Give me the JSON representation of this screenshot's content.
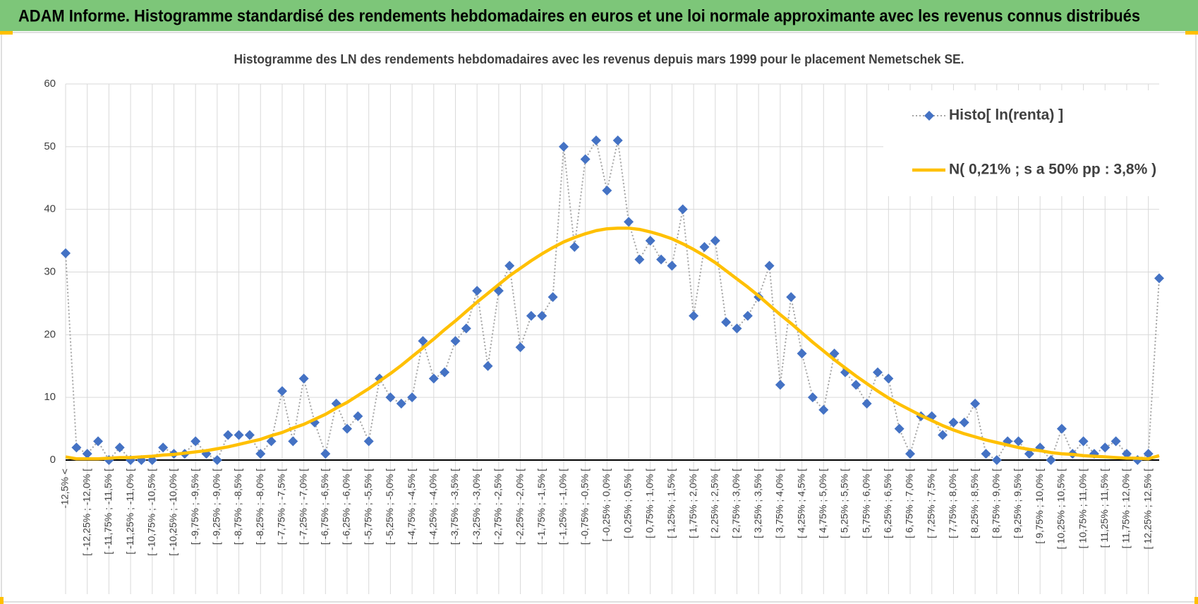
{
  "header": {
    "title": "ADAM Informe. Histogramme standardisé des rendements hebdomadaires en euros et une loi normale approximante avec les revenus connus distribués"
  },
  "chart_data": {
    "type": "line",
    "title": "Histogramme des LN des rendements hebdomadaires avec les revenus depuis mars 1999 pour le placement Nemetschek SE.",
    "categories": [
      "-12,5% <",
      null,
      "[ -12,25% ; -12,0% [",
      null,
      "[ -11,75% ; -11,5% [",
      null,
      "[ -11,25% ; -11,0% [",
      null,
      "[ -10,75% ; -10,5% [",
      null,
      "[ -10,25% ; -10,0% [",
      null,
      "[ -9,75% ; -9,5% [",
      null,
      "[ -9,25% ; -9,0% [",
      null,
      "[ -8,75% ; -8,5% [",
      null,
      "[ -8,25% ; -8,0% [",
      null,
      "[ -7,75% ; -7,5% [",
      null,
      "[ -7,25% ; -7,0% [",
      null,
      "[ -6,75% ; -6,5% [",
      null,
      "[ -6,25% ; -6,0% [",
      null,
      "[ -5,75% ; -5,5% [",
      null,
      "[ -5,25% ; -5,0% [",
      null,
      "[ -4,75% ; -4,5% [",
      null,
      "[ -4,25% ; -4,0% [",
      null,
      "[ -3,75% ; -3,5% [",
      null,
      "[ -3,25% ; -3,0% [",
      null,
      "[ -2,75% ; -2,5% [",
      null,
      "[ -2,25% ; -2,0% [",
      null,
      "[ -1,75% ; -1,5% [",
      null,
      "[ -1,25% ; -1,0% [",
      null,
      "[ -0,75% ; -0,5% [",
      null,
      "[ -0,25% ; 0,0% [",
      null,
      "[ 0,25% ; 0,5% [",
      null,
      "[ 0,75% ; 1,0% [",
      null,
      "[ 1,25% ; 1,5% [",
      null,
      "[ 1,75% ; 2,0% [",
      null,
      "[ 2,25% ; 2,5% [",
      null,
      "[ 2,75% ; 3,0% [",
      null,
      "[ 3,25% ; 3,5% [",
      null,
      "[ 3,75% ; 4,0% [",
      null,
      "[ 4,25% ; 4,5% [",
      null,
      "[ 4,75% ; 5,0% [",
      null,
      "[ 5,25% ; 5,5% [",
      null,
      "[ 5,75% ; 6,0% [",
      null,
      "[ 6,25% ; 6,5% [",
      null,
      "[ 6,75% ; 7,0% [",
      null,
      "[ 7,25% ; 7,5% [",
      null,
      "[ 7,75% ; 8,0% [",
      null,
      "[ 8,25% ; 8,5% [",
      null,
      "[ 8,75% ; 9,0% [",
      null,
      "[ 9,25% ; 9,5% [",
      null,
      "[ 9,75% ; 10,0% [",
      null,
      "[ 10,25% ; 10,5% [",
      null,
      "[ 10,75% ; 11,0% [",
      null,
      "[ 11,25% ; 11,5% [",
      null,
      "[ 11,75% ; 12,0% [",
      null,
      "[ 12,25% ; 12,5% [",
      null
    ],
    "series": [
      {
        "name": "Histo[ ln(renta) ]",
        "color": "#4472c4",
        "line_color": "#a5a5a5",
        "marker": "diamond",
        "dashed": true,
        "values": [
          33,
          2,
          1,
          3,
          0,
          2,
          0,
          0,
          0,
          2,
          1,
          1,
          3,
          1,
          0,
          4,
          4,
          4,
          1,
          3,
          11,
          3,
          13,
          6,
          1,
          9,
          5,
          7,
          3,
          13,
          10,
          9,
          10,
          19,
          13,
          14,
          19,
          21,
          27,
          15,
          27,
          31,
          18,
          23,
          23,
          26,
          50,
          34,
          48,
          51,
          43,
          51,
          38,
          32,
          35,
          32,
          31,
          40,
          23,
          34,
          35,
          22,
          21,
          23,
          26,
          31,
          12,
          26,
          17,
          10,
          8,
          17,
          14,
          12,
          9,
          14,
          13,
          5,
          1,
          7,
          7,
          4,
          6,
          6,
          9,
          1,
          0,
          3,
          3,
          1,
          2,
          0,
          5,
          1,
          3,
          1,
          2,
          3,
          1,
          0,
          1,
          29
        ]
      },
      {
        "name": "N( 0,21% ; s a 50% pp : 3,8% )",
        "color": "#ffc000",
        "marker": "none",
        "dashed": false,
        "values": [
          0.5,
          0.2,
          0.2,
          0.2,
          0.3,
          0.4,
          0.4,
          0.5,
          0.6,
          0.8,
          0.9,
          1.1,
          1.3,
          1.5,
          1.8,
          2.1,
          2.5,
          2.9,
          3.3,
          3.9,
          4.4,
          5.1,
          5.7,
          6.5,
          7.3,
          8.3,
          9.2,
          10.3,
          11.4,
          12.6,
          13.8,
          15.1,
          16.5,
          17.9,
          19.3,
          20.8,
          22.2,
          23.7,
          25.2,
          26.6,
          28.0,
          29.4,
          30.6,
          31.8,
          32.9,
          33.9,
          34.8,
          35.5,
          36.1,
          36.6,
          36.9,
          37.0,
          37.0,
          36.8,
          36.4,
          35.9,
          35.3,
          34.5,
          33.6,
          32.6,
          31.5,
          30.2,
          28.9,
          27.6,
          26.2,
          24.7,
          23.2,
          21.8,
          20.3,
          18.8,
          17.4,
          16.0,
          14.7,
          13.4,
          12.2,
          11.0,
          9.9,
          8.9,
          8.0,
          7.1,
          6.3,
          5.5,
          4.8,
          4.2,
          3.7,
          3.2,
          2.8,
          2.4,
          2.0,
          1.7,
          1.5,
          1.2,
          1.0,
          0.9,
          0.7,
          0.6,
          0.5,
          0.4,
          0.3,
          0.3,
          0.2,
          0.7
        ]
      }
    ],
    "ylim": [
      0,
      60
    ],
    "yticks": [
      0,
      10,
      20,
      30,
      40,
      50,
      60
    ],
    "grid": true,
    "legend": "top-right"
  }
}
